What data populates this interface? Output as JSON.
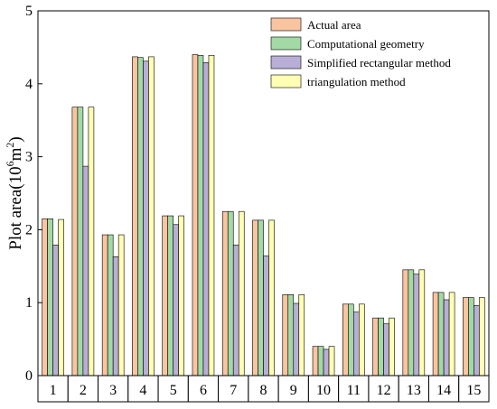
{
  "chart_data": {
    "type": "bar",
    "categories": [
      "1",
      "2",
      "3",
      "4",
      "5",
      "6",
      "7",
      "8",
      "9",
      "10",
      "11",
      "12",
      "13",
      "14",
      "15"
    ],
    "series": [
      {
        "name": "Actual area",
        "color": "#F9C4A0",
        "values": [
          2.15,
          3.68,
          1.93,
          4.37,
          2.19,
          4.4,
          2.25,
          2.13,
          1.11,
          0.4,
          0.98,
          0.79,
          1.45,
          1.14,
          1.07
        ]
      },
      {
        "name": "Computational geometry",
        "color": "#A3D9A5",
        "values": [
          2.15,
          3.68,
          1.93,
          4.36,
          2.19,
          4.39,
          2.25,
          2.13,
          1.11,
          0.4,
          0.98,
          0.79,
          1.45,
          1.14,
          1.07
        ]
      },
      {
        "name": "Simplified rectangular method",
        "color": "#B8AED6",
        "values": [
          1.79,
          2.87,
          1.63,
          4.31,
          2.07,
          4.29,
          1.79,
          1.64,
          0.99,
          0.36,
          0.87,
          0.71,
          1.39,
          1.04,
          0.96
        ]
      },
      {
        "name": "triangulation method",
        "color": "#FFFFB3",
        "values": [
          2.14,
          3.68,
          1.93,
          4.37,
          2.19,
          4.39,
          2.25,
          2.13,
          1.11,
          0.4,
          0.98,
          0.79,
          1.45,
          1.14,
          1.07
        ]
      }
    ],
    "ylabel_text": "Plot area(10",
    "ylabel_sup1": "6",
    "ylabel_mid": "m",
    "ylabel_sup2": "2",
    "ylabel_close": ")",
    "ylim": [
      0,
      5
    ],
    "yticks": [
      "0",
      "1",
      "2",
      "3",
      "4",
      "5"
    ],
    "legend_position": "top-right",
    "grid": false
  }
}
